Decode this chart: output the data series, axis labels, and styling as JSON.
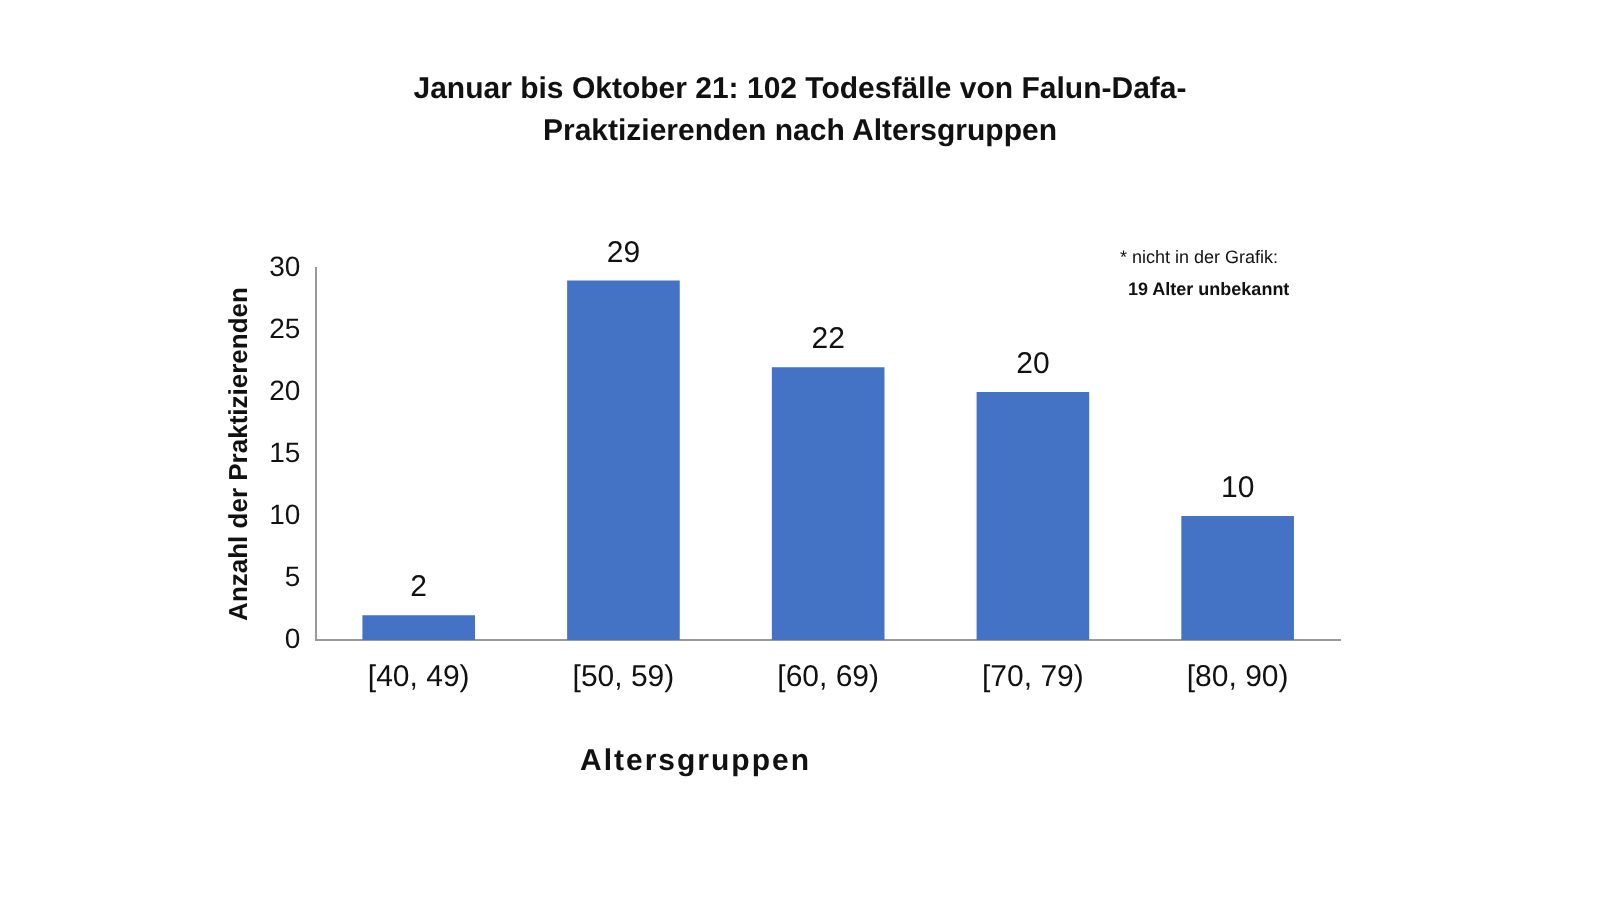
{
  "chart_data": {
    "type": "bar",
    "title": "Januar bis Oktober 21: 102 Todesfälle von Falun-Dafa-Praktizierenden nach Altersgruppen",
    "xlabel": "Altersgruppen",
    "ylabel": "Anzahl der Praktizierenden",
    "categories": [
      "[40, 49)",
      "[50, 59)",
      "[60, 69)",
      "[70, 79)",
      "[80, 90)"
    ],
    "values": [
      2,
      29,
      22,
      20,
      10
    ],
    "color": "#4472c4",
    "ylim": [
      0,
      30
    ],
    "yticks": [
      0,
      5,
      10,
      15,
      20,
      25,
      30
    ],
    "grid": false,
    "data_labels": true,
    "annotations": [
      "* nicht in der Grafik:",
      "19 Alter unbekannt"
    ]
  }
}
